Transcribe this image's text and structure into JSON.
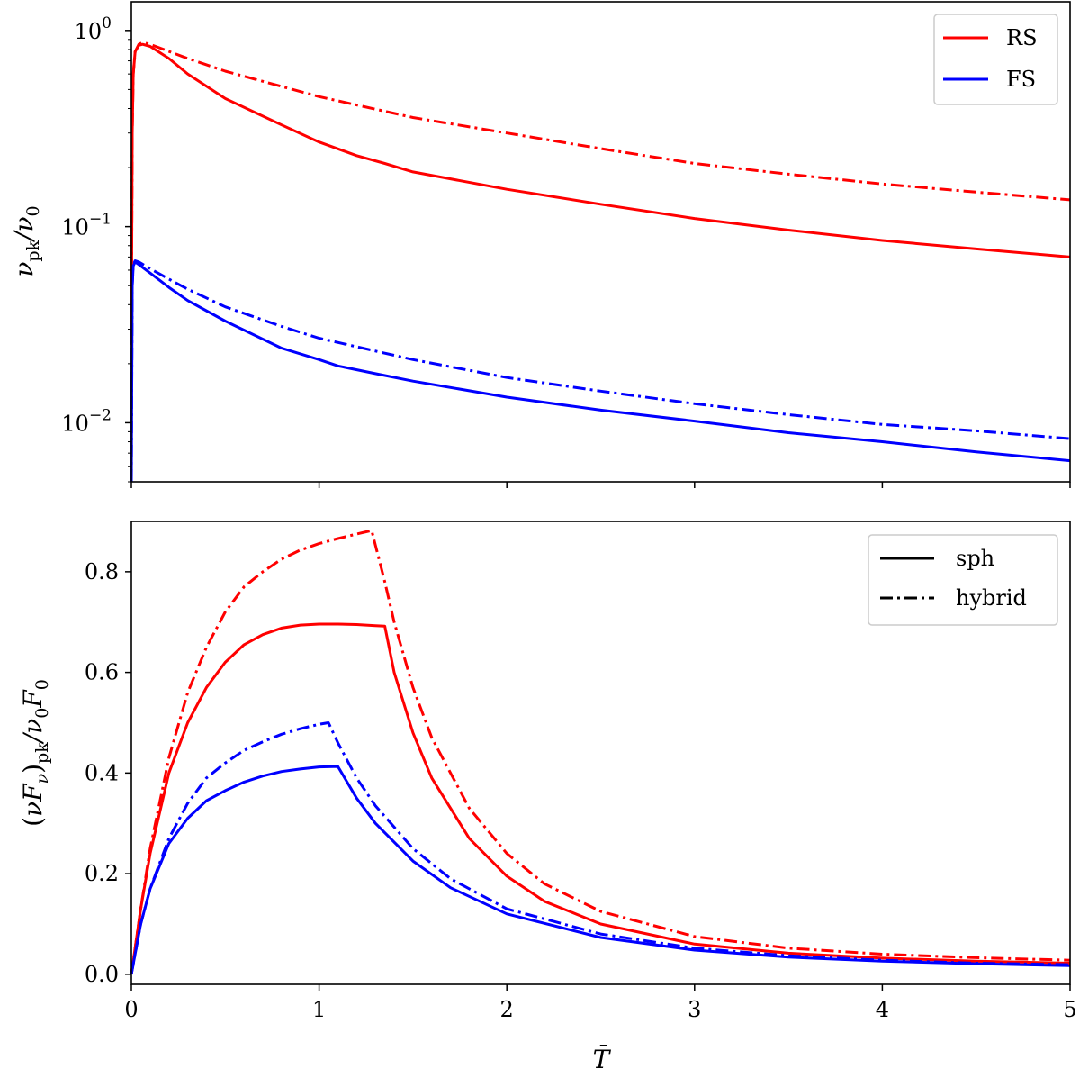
{
  "chart_data": [
    {
      "type": "line",
      "yscale": "log",
      "ylabel": "ν_pk/ν_0",
      "xlim": [
        0,
        5
      ],
      "ylim": [
        0.005,
        1.4
      ],
      "ytick_values": [
        1,
        0.1,
        0.01
      ],
      "ytick_base": "10",
      "ytick_exponents": [
        "0",
        "−1",
        "−2"
      ],
      "legend": {
        "position": "top-right",
        "entries": [
          {
            "label": "RS",
            "color": "#ff0000",
            "style": "solid"
          },
          {
            "label": "FS",
            "color": "#0000ff",
            "style": "solid"
          }
        ]
      },
      "series": [
        {
          "name": "RS sph",
          "color": "#ff0000",
          "style": "solid",
          "x": [
            0,
            0.005,
            0.01,
            0.02,
            0.04,
            0.06,
            0.1,
            0.2,
            0.3,
            0.5,
            0.8,
            1.0,
            1.2,
            1.35,
            1.5,
            2.0,
            2.5,
            3.0,
            3.5,
            4.0,
            4.5,
            5.0
          ],
          "y": [
            0.025,
            0.3,
            0.6,
            0.78,
            0.84,
            0.85,
            0.83,
            0.72,
            0.6,
            0.45,
            0.33,
            0.27,
            0.23,
            0.21,
            0.19,
            0.155,
            0.13,
            0.11,
            0.096,
            0.085,
            0.077,
            0.07
          ]
        },
        {
          "name": "RS hybrid",
          "color": "#ff0000",
          "style": "dashdot",
          "x": [
            0,
            0.005,
            0.01,
            0.02,
            0.04,
            0.06,
            0.1,
            0.3,
            0.5,
            1.0,
            1.5,
            2.0,
            2.5,
            3.0,
            3.5,
            4.0,
            4.5,
            5.0
          ],
          "y": [
            0.025,
            0.3,
            0.6,
            0.78,
            0.85,
            0.87,
            0.85,
            0.72,
            0.62,
            0.46,
            0.36,
            0.3,
            0.25,
            0.21,
            0.185,
            0.165,
            0.15,
            0.137
          ]
        },
        {
          "name": "FS sph",
          "color": "#0000ff",
          "style": "solid",
          "x": [
            0,
            0.005,
            0.01,
            0.02,
            0.04,
            0.1,
            0.2,
            0.3,
            0.5,
            0.8,
            1.0,
            1.1,
            1.3,
            1.5,
            2.0,
            2.5,
            3.0,
            3.5,
            4.0,
            4.5,
            5.0
          ],
          "y": [
            0.005,
            0.05,
            0.063,
            0.066,
            0.064,
            0.058,
            0.049,
            0.042,
            0.033,
            0.024,
            0.021,
            0.0195,
            0.0178,
            0.0163,
            0.0135,
            0.0116,
            0.0102,
            0.0089,
            0.008,
            0.0071,
            0.0064
          ]
        },
        {
          "name": "FS hybrid",
          "color": "#0000ff",
          "style": "dashdot",
          "x": [
            0,
            0.005,
            0.01,
            0.02,
            0.04,
            0.1,
            0.2,
            0.3,
            0.5,
            0.8,
            1.0,
            1.5,
            2.0,
            2.5,
            3.0,
            3.5,
            4.0,
            4.5,
            5.0
          ],
          "y": [
            0.005,
            0.05,
            0.064,
            0.067,
            0.066,
            0.061,
            0.054,
            0.048,
            0.039,
            0.031,
            0.027,
            0.021,
            0.017,
            0.0145,
            0.0125,
            0.011,
            0.0098,
            0.0091,
            0.0083
          ]
        }
      ]
    },
    {
      "type": "line",
      "yscale": "linear",
      "ylabel": "(νF_ν)_pk/ν_0F_0",
      "xlabel": "T̄",
      "xlim": [
        0,
        5
      ],
      "ylim": [
        -0.02,
        0.9
      ],
      "xticks": [
        "0",
        "1",
        "2",
        "3",
        "4",
        "5"
      ],
      "yticks": [
        "0.0",
        "0.2",
        "0.4",
        "0.6",
        "0.8"
      ],
      "legend": {
        "position": "top-right",
        "entries": [
          {
            "label": "sph",
            "color": "#000000",
            "style": "solid"
          },
          {
            "label": "hybrid",
            "color": "#000000",
            "style": "dashdot"
          }
        ]
      },
      "series": [
        {
          "name": "RS sph",
          "color": "#ff0000",
          "style": "solid",
          "x": [
            0,
            0.05,
            0.1,
            0.2,
            0.3,
            0.4,
            0.5,
            0.6,
            0.7,
            0.8,
            0.9,
            1.0,
            1.1,
            1.2,
            1.3,
            1.35,
            1.4,
            1.5,
            1.6,
            1.8,
            2.0,
            2.2,
            2.5,
            3.0,
            3.5,
            4.0,
            4.5,
            5.0
          ],
          "y": [
            0,
            0.13,
            0.24,
            0.4,
            0.5,
            0.57,
            0.62,
            0.655,
            0.675,
            0.688,
            0.694,
            0.696,
            0.696,
            0.695,
            0.693,
            0.692,
            0.6,
            0.48,
            0.39,
            0.27,
            0.195,
            0.145,
            0.1,
            0.06,
            0.042,
            0.032,
            0.026,
            0.022
          ]
        },
        {
          "name": "RS hybrid",
          "color": "#ff0000",
          "style": "dashdot",
          "x": [
            0,
            0.05,
            0.1,
            0.2,
            0.3,
            0.4,
            0.5,
            0.6,
            0.7,
            0.8,
            0.9,
            1.0,
            1.1,
            1.2,
            1.28,
            1.35,
            1.4,
            1.5,
            1.6,
            1.8,
            2.0,
            2.2,
            2.5,
            3.0,
            3.5,
            4.0,
            4.5,
            5.0
          ],
          "y": [
            0,
            0.13,
            0.25,
            0.43,
            0.56,
            0.65,
            0.72,
            0.77,
            0.8,
            0.825,
            0.843,
            0.856,
            0.866,
            0.875,
            0.882,
            0.78,
            0.7,
            0.57,
            0.47,
            0.33,
            0.24,
            0.18,
            0.125,
            0.075,
            0.052,
            0.04,
            0.033,
            0.028
          ]
        },
        {
          "name": "FS sph",
          "color": "#0000ff",
          "style": "solid",
          "x": [
            0,
            0.05,
            0.1,
            0.2,
            0.3,
            0.4,
            0.5,
            0.6,
            0.7,
            0.8,
            0.9,
            1.0,
            1.1,
            1.2,
            1.3,
            1.5,
            1.7,
            2.0,
            2.5,
            3.0,
            3.5,
            4.0,
            4.5,
            5.0
          ],
          "y": [
            0,
            0.1,
            0.17,
            0.26,
            0.31,
            0.345,
            0.365,
            0.382,
            0.394,
            0.403,
            0.408,
            0.412,
            0.413,
            0.35,
            0.3,
            0.225,
            0.172,
            0.12,
            0.073,
            0.048,
            0.034,
            0.026,
            0.021,
            0.017
          ]
        },
        {
          "name": "FS hybrid",
          "color": "#0000ff",
          "style": "dashdot",
          "x": [
            0,
            0.05,
            0.1,
            0.2,
            0.3,
            0.4,
            0.5,
            0.6,
            0.7,
            0.8,
            0.9,
            1.0,
            1.05,
            1.1,
            1.2,
            1.3,
            1.5,
            1.7,
            2.0,
            2.5,
            3.0,
            3.5,
            4.0,
            4.5,
            5.0
          ],
          "y": [
            0,
            0.1,
            0.17,
            0.27,
            0.34,
            0.39,
            0.42,
            0.445,
            0.462,
            0.477,
            0.488,
            0.497,
            0.5,
            0.46,
            0.39,
            0.335,
            0.25,
            0.19,
            0.13,
            0.08,
            0.052,
            0.037,
            0.028,
            0.022,
            0.019
          ]
        }
      ]
    }
  ]
}
